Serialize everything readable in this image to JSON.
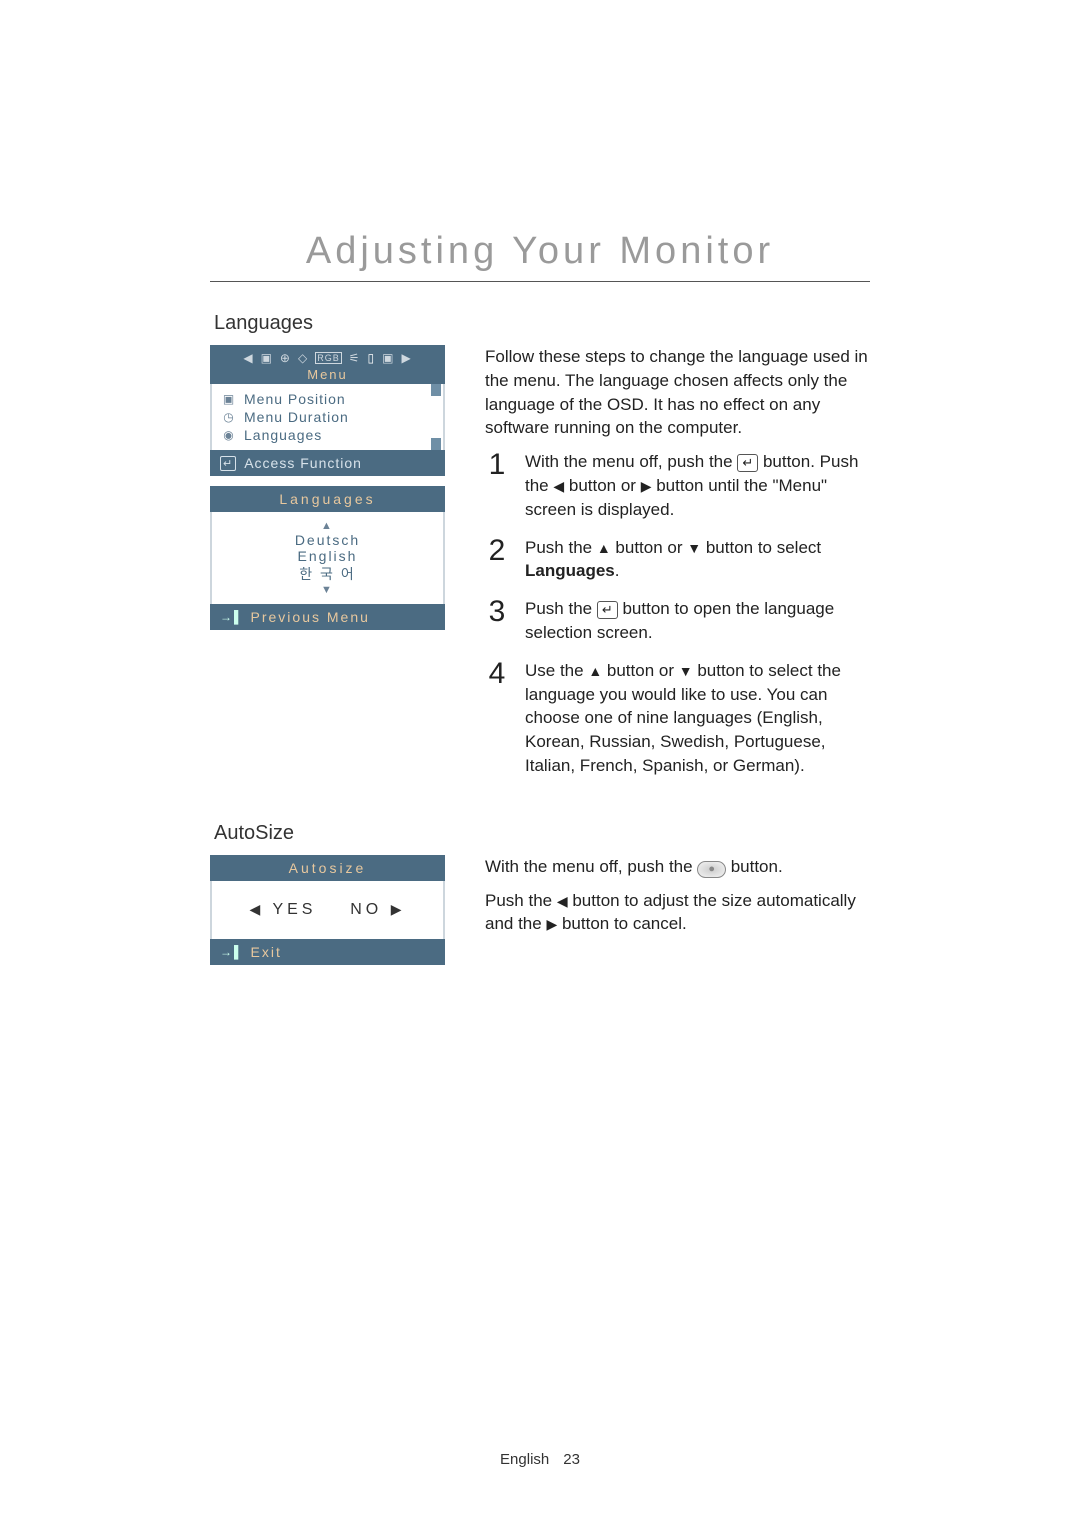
{
  "page": {
    "title": "Adjusting Your Monitor",
    "footer_lang": "English",
    "footer_page": "23"
  },
  "colors": {
    "osd_bg": "#4b6b82",
    "osd_accent": "#e8c89e",
    "osd_text": "#d7e2ea",
    "body_text": "#222222"
  },
  "section_languages": {
    "heading": "Languages",
    "intro": "Follow these steps to change the language used in the menu. The language chosen affects only the language of the OSD. It has no effect on any software running on the computer.",
    "osd_main": {
      "menu_label": "Menu",
      "nav_left": "◀",
      "nav_right": "▶",
      "icons": [
        "▣",
        "⊕",
        "◇",
        "RGB",
        "⚟",
        "▯",
        "▣"
      ],
      "items": [
        {
          "icon": "▣",
          "label": "Menu Position"
        },
        {
          "icon": "◷",
          "label": "Menu Duration"
        },
        {
          "icon": "◉",
          "label": "Languages"
        }
      ],
      "access_icon": "↵",
      "access_label": "Access Function"
    },
    "osd_lang": {
      "title": "Languages",
      "up": "▲",
      "options": [
        "Deutsch",
        "English",
        "한 국 어"
      ],
      "down": "▼",
      "footer_icon": "→▌",
      "footer_label": "Previous Menu"
    },
    "steps": [
      {
        "n": "1",
        "pre": "With the menu off, push the ",
        "mid": " button. Push the ",
        "a": "◀",
        "b": "▶",
        "post": " button until the \"Menu\" screen is displayed.",
        "has_enter": true,
        "two_arrows": true,
        "joiner": " button or "
      },
      {
        "n": "2",
        "pre": "Push the ",
        "a": "▲",
        "b": "▼",
        "joiner": " button or ",
        "post": " button to select ",
        "bold": "Languages",
        "tail": ".",
        "two_arrows": true
      },
      {
        "n": "3",
        "pre": "Push the ",
        "has_enter": true,
        "post": " button to open the language selection screen."
      },
      {
        "n": "4",
        "pre": "Use the ",
        "a": "▲",
        "b": "▼",
        "joiner": " button or ",
        "post": " button to select the language you would like to use. You can choose one of nine languages (English, Korean, Russian, Swedish, Portuguese, Italian, French, Spanish, or German).",
        "two_arrows": true
      }
    ]
  },
  "section_autosize": {
    "heading": "AutoSize",
    "osd": {
      "title": "Autosize",
      "yes_arrow": "◀",
      "yes": "YES",
      "no": "NO",
      "no_arrow": "▶",
      "footer_icon": "→▌",
      "footer_label": "Exit"
    },
    "text": {
      "line1_pre": "With the menu off, push the ",
      "line1_post": " button.",
      "line2_pre": "Push the ",
      "line2_a": "◀",
      "line2_mid": " button to adjust the size automatically and the ",
      "line2_b": "▶",
      "line2_post": " button to cancel."
    }
  }
}
